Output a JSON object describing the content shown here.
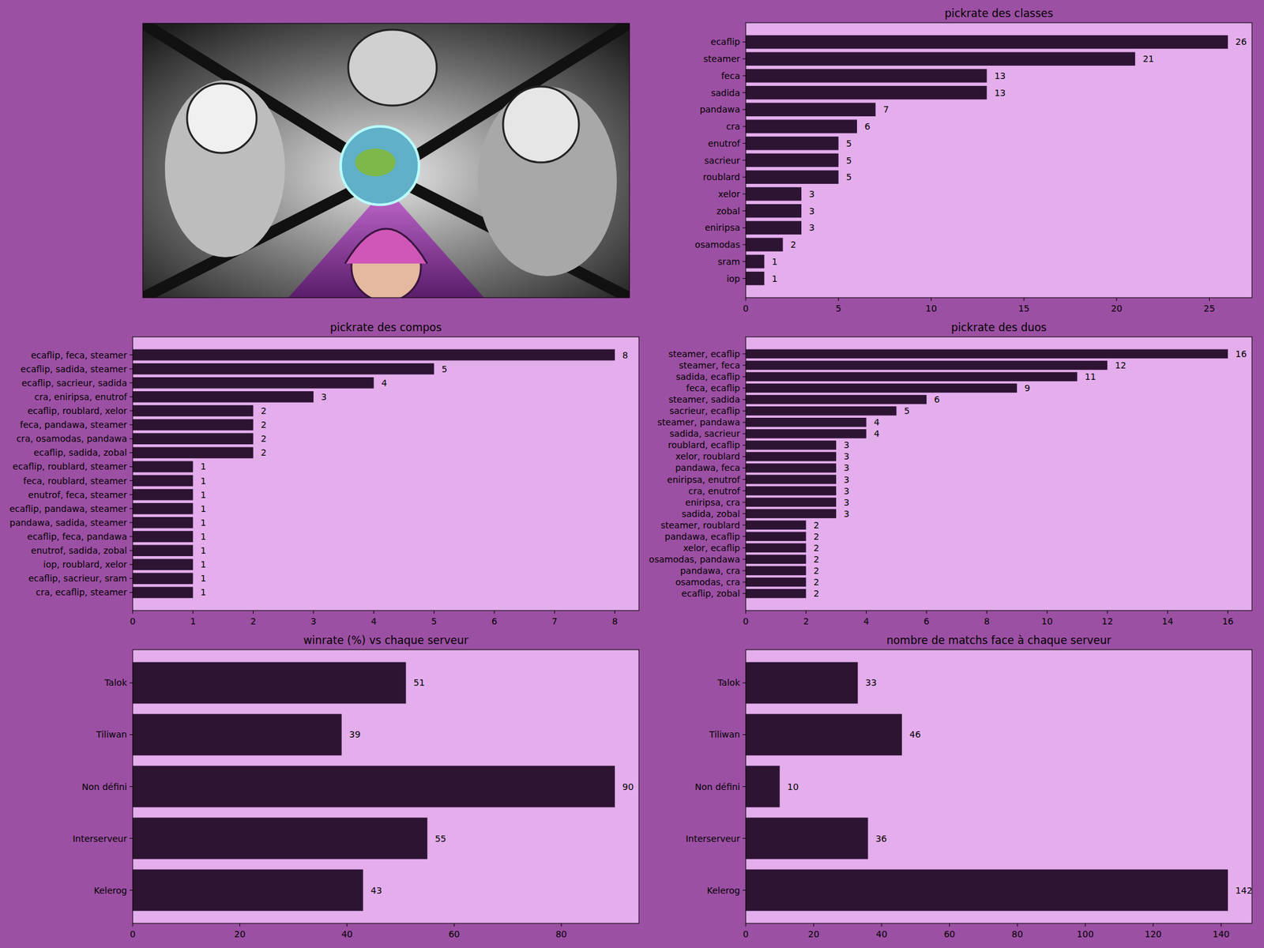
{
  "chart_data": [
    {
      "type": "bar",
      "title": "pickrate des classes",
      "orientation": "horizontal",
      "data_labels": true,
      "color": "#2d1433",
      "categories": [
        "ecaflip",
        "steamer",
        "feca",
        "sadida",
        "pandawa",
        "cra",
        "enutrof",
        "sacrieur",
        "roublard",
        "xelor",
        "zobal",
        "eniripsa",
        "osamodas",
        "sram",
        "iop"
      ],
      "values": [
        26,
        21,
        13,
        13,
        7,
        6,
        5,
        5,
        5,
        3,
        3,
        3,
        2,
        1,
        1
      ],
      "xlim": [
        0,
        27.3
      ],
      "xticks": [
        0,
        5,
        10,
        15,
        20,
        25
      ]
    },
    {
      "type": "bar",
      "title": "pickrate des compos",
      "orientation": "horizontal",
      "data_labels": true,
      "color": "#2d1433",
      "categories": [
        "ecaflip, feca, steamer",
        "ecaflip, sadida, steamer",
        "ecaflip, sacrieur, sadida",
        "cra, eniripsa, enutrof",
        "ecaflip, roublard, xelor",
        "feca, pandawa, steamer",
        "cra, osamodas, pandawa",
        "ecaflip, sadida, zobal",
        "ecaflip, roublard, steamer",
        "feca, roublard, steamer",
        "enutrof, feca, steamer",
        "ecaflip, pandawa, steamer",
        "pandawa, sadida, steamer",
        "ecaflip, feca, pandawa",
        "enutrof, sadida, zobal",
        "iop, roublard, xelor",
        "ecaflip, sacrieur, sram",
        "cra, ecaflip, steamer"
      ],
      "values": [
        8,
        5,
        4,
        3,
        2,
        2,
        2,
        2,
        1,
        1,
        1,
        1,
        1,
        1,
        1,
        1,
        1,
        1
      ],
      "xlim": [
        0,
        8.4
      ],
      "xticks": [
        0,
        1,
        2,
        3,
        4,
        5,
        6,
        7,
        8
      ]
    },
    {
      "type": "bar",
      "title": "pickrate des duos",
      "orientation": "horizontal",
      "data_labels": true,
      "color": "#2d1433",
      "categories": [
        "steamer, ecaflip",
        "steamer, feca",
        "sadida, ecaflip",
        "feca, ecaflip",
        "steamer, sadida",
        "sacrieur, ecaflip",
        "steamer, pandawa",
        "sadida, sacrieur",
        "roublard, ecaflip",
        "xelor, roublard",
        "pandawa, feca",
        "eniripsa, enutrof",
        "cra, enutrof",
        "eniripsa, cra",
        "sadida, zobal",
        "steamer, roublard",
        "pandawa, ecaflip",
        "xelor, ecaflip",
        "osamodas, pandawa",
        "pandawa, cra",
        "osamodas, cra",
        "ecaflip, zobal"
      ],
      "values": [
        16,
        12,
        11,
        9,
        6,
        5,
        4,
        4,
        3,
        3,
        3,
        3,
        3,
        3,
        3,
        2,
        2,
        2,
        2,
        2,
        2,
        2
      ],
      "xlim": [
        0,
        16.8
      ],
      "xticks": [
        0,
        2,
        4,
        6,
        8,
        10,
        12,
        14,
        16
      ]
    },
    {
      "type": "bar",
      "title": "winrate (%) vs chaque serveur",
      "orientation": "horizontal",
      "data_labels": true,
      "color": "#2d1433",
      "categories": [
        "Talok",
        "Tiliwan",
        "Non défini",
        "Interserveur",
        "Kelerog"
      ],
      "values": [
        51,
        39,
        90,
        55,
        43
      ],
      "xlim": [
        0,
        94.5
      ],
      "xticks": [
        0,
        20,
        40,
        60,
        80
      ]
    },
    {
      "type": "bar",
      "title": "nombre de matchs face à chaque serveur",
      "orientation": "horizontal",
      "data_labels": true,
      "color": "#2d1433",
      "categories": [
        "Talok",
        "Tiliwan",
        "Non défini",
        "Interserveur",
        "Kelerog"
      ],
      "values": [
        33,
        46,
        10,
        36,
        142
      ],
      "xlim": [
        0,
        149.1
      ],
      "xticks": [
        0,
        20,
        40,
        60,
        80,
        100,
        120,
        140
      ]
    }
  ]
}
